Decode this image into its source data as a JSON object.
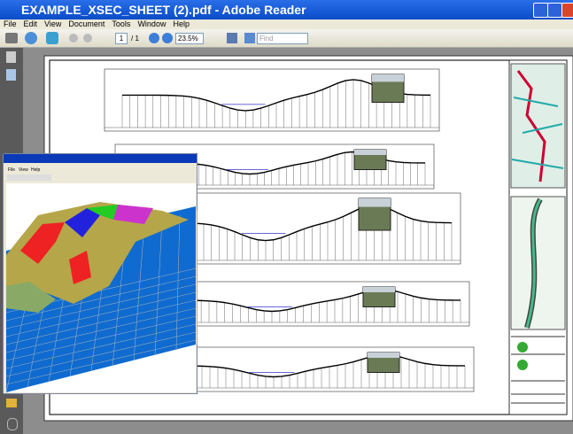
{
  "window": {
    "title": "EXAMPLE_XSEC_SHEET (2).pdf - Adobe Reader"
  },
  "menu": [
    "File",
    "Edit",
    "View",
    "Document",
    "Tools",
    "Window",
    "Help"
  ],
  "toolbar": {
    "page": "1",
    "page_total": "/ 1",
    "zoom": "23.5%",
    "find": "Find"
  },
  "viewer": {
    "menu": [
      "File",
      "View",
      "Help"
    ]
  }
}
